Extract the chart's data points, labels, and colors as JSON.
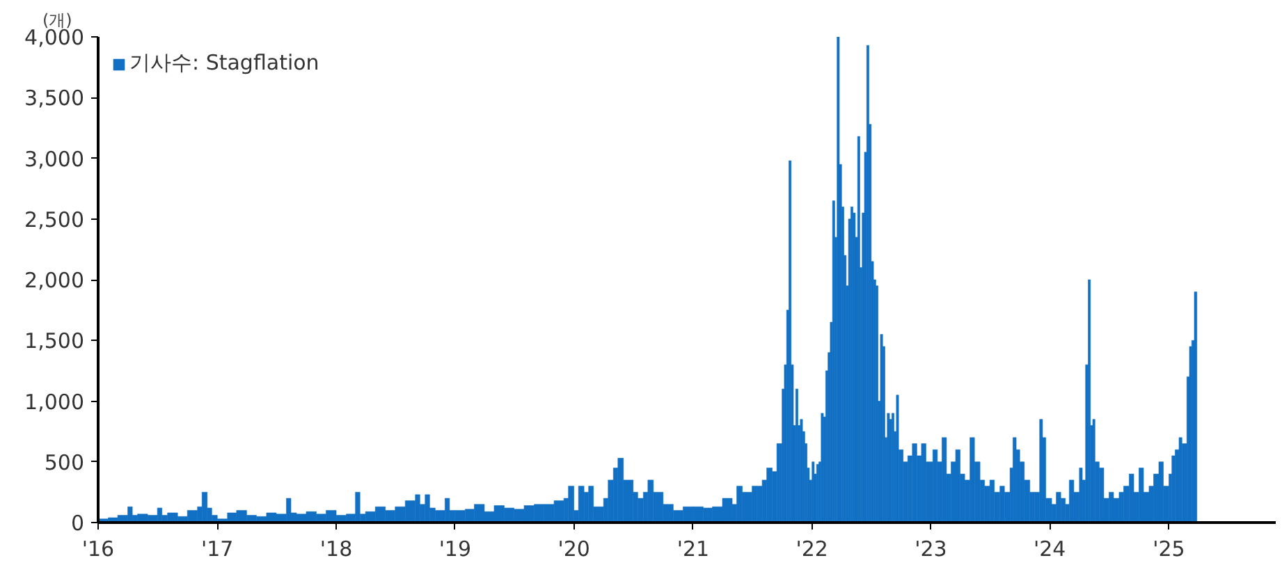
{
  "chart_data": {
    "type": "bar",
    "ylabel": "(개)",
    "series": [
      {
        "name": "기사수: Stagflation",
        "color": "#1170c4",
        "x": [
          "2016-01-01",
          "2016-02-01",
          "2016-03-01",
          "2016-04-01",
          "2016-04-15",
          "2016-05-01",
          "2016-06-01",
          "2016-07-01",
          "2016-07-15",
          "2016-08-01",
          "2016-09-01",
          "2016-10-01",
          "2016-11-01",
          "2016-11-15",
          "2016-12-01",
          "2016-12-15",
          "2017-01-01",
          "2017-02-01",
          "2017-03-01",
          "2017-04-01",
          "2017-05-01",
          "2017-06-01",
          "2017-07-01",
          "2017-08-01",
          "2017-08-15",
          "2017-09-01",
          "2017-10-01",
          "2017-11-01",
          "2017-12-01",
          "2018-01-01",
          "2018-02-01",
          "2018-03-01",
          "2018-03-15",
          "2018-04-01",
          "2018-05-01",
          "2018-06-01",
          "2018-07-01",
          "2018-08-01",
          "2018-09-01",
          "2018-09-15",
          "2018-10-01",
          "2018-10-15",
          "2018-11-01",
          "2018-12-01",
          "2018-12-15",
          "2019-01-01",
          "2019-02-01",
          "2019-03-01",
          "2019-04-01",
          "2019-05-01",
          "2019-06-01",
          "2019-07-01",
          "2019-08-01",
          "2019-09-01",
          "2019-10-01",
          "2019-11-01",
          "2019-12-01",
          "2019-12-15",
          "2020-01-01",
          "2020-01-15",
          "2020-02-01",
          "2020-02-15",
          "2020-03-01",
          "2020-04-01",
          "2020-04-15",
          "2020-05-01",
          "2020-05-15",
          "2020-06-01",
          "2020-07-01",
          "2020-07-15",
          "2020-08-01",
          "2020-08-15",
          "2020-09-01",
          "2020-10-01",
          "2020-11-01",
          "2020-12-01",
          "2021-01-01",
          "2021-02-01",
          "2021-03-01",
          "2021-04-01",
          "2021-05-01",
          "2021-05-15",
          "2021-06-01",
          "2021-07-01",
          "2021-07-15",
          "2021-08-01",
          "2021-08-15",
          "2021-09-01",
          "2021-09-15",
          "2021-09-22",
          "2021-10-01",
          "2021-10-08",
          "2021-10-15",
          "2021-10-22",
          "2021-10-29",
          "2021-11-05",
          "2021-11-12",
          "2021-11-19",
          "2021-11-26",
          "2021-12-03",
          "2021-12-10",
          "2021-12-17",
          "2021-12-24",
          "2022-01-01",
          "2022-01-08",
          "2022-01-15",
          "2022-01-22",
          "2022-01-29",
          "2022-02-05",
          "2022-02-12",
          "2022-02-19",
          "2022-02-26",
          "2022-03-05",
          "2022-03-12",
          "2022-03-19",
          "2022-03-26",
          "2022-04-02",
          "2022-04-09",
          "2022-04-16",
          "2022-04-23",
          "2022-04-30",
          "2022-05-07",
          "2022-05-14",
          "2022-05-21",
          "2022-05-28",
          "2022-06-04",
          "2022-06-11",
          "2022-06-18",
          "2022-06-25",
          "2022-07-02",
          "2022-07-09",
          "2022-07-16",
          "2022-07-23",
          "2022-07-30",
          "2022-08-06",
          "2022-08-13",
          "2022-08-20",
          "2022-08-27",
          "2022-09-03",
          "2022-09-10",
          "2022-09-17",
          "2022-09-24",
          "2022-10-08",
          "2022-10-22",
          "2022-11-05",
          "2022-11-19",
          "2022-12-03",
          "2022-12-17",
          "2023-01-07",
          "2023-01-21",
          "2023-02-04",
          "2023-02-18",
          "2023-03-04",
          "2023-03-18",
          "2023-04-01",
          "2023-04-15",
          "2023-05-01",
          "2023-05-15",
          "2023-06-01",
          "2023-06-15",
          "2023-07-01",
          "2023-07-15",
          "2023-08-01",
          "2023-08-15",
          "2023-09-01",
          "2023-09-10",
          "2023-09-20",
          "2023-10-01",
          "2023-10-15",
          "2023-11-01",
          "2023-11-15",
          "2023-12-01",
          "2023-12-10",
          "2023-12-20",
          "2024-01-07",
          "2024-01-21",
          "2024-02-04",
          "2024-02-18",
          "2024-03-01",
          "2024-03-15",
          "2024-04-01",
          "2024-04-10",
          "2024-04-20",
          "2024-04-28",
          "2024-05-05",
          "2024-05-12",
          "2024-05-19",
          "2024-06-01",
          "2024-06-15",
          "2024-07-01",
          "2024-07-15",
          "2024-08-01",
          "2024-08-15",
          "2024-09-01",
          "2024-09-15",
          "2024-10-01",
          "2024-10-15",
          "2024-11-01",
          "2024-11-15",
          "2024-12-01",
          "2024-12-15",
          "2025-01-01",
          "2025-01-10",
          "2025-01-20",
          "2025-02-01",
          "2025-02-10",
          "2025-02-25",
          "2025-03-05",
          "2025-03-12",
          "2025-03-20"
        ],
        "values": [
          30,
          40,
          60,
          130,
          60,
          70,
          60,
          120,
          60,
          80,
          50,
          100,
          130,
          250,
          120,
          60,
          30,
          80,
          100,
          60,
          50,
          80,
          70,
          200,
          80,
          70,
          90,
          70,
          100,
          60,
          70,
          250,
          70,
          90,
          130,
          100,
          130,
          180,
          230,
          150,
          230,
          120,
          100,
          200,
          100,
          100,
          110,
          150,
          90,
          140,
          120,
          110,
          140,
          150,
          150,
          180,
          200,
          300,
          100,
          300,
          250,
          300,
          130,
          200,
          350,
          450,
          530,
          350,
          250,
          200,
          250,
          350,
          250,
          150,
          100,
          130,
          130,
          120,
          130,
          200,
          150,
          300,
          250,
          300,
          300,
          350,
          450,
          420,
          650,
          650,
          1100,
          1300,
          1750,
          2980,
          1300,
          800,
          1100,
          800,
          850,
          750,
          650,
          450,
          350,
          500,
          400,
          480,
          500,
          900,
          870,
          1250,
          1400,
          1650,
          2650,
          2350,
          4000,
          2950,
          2600,
          2200,
          1950,
          2500,
          2600,
          2550,
          2350,
          3180,
          2100,
          2550,
          3050,
          3930,
          3280,
          2150,
          2000,
          1950,
          1000,
          1550,
          1450,
          700,
          900,
          850,
          900,
          750,
          1050,
          600,
          500,
          550,
          650,
          550,
          650,
          500,
          600,
          500,
          700,
          400,
          500,
          600,
          400,
          350,
          700,
          500,
          350,
          300,
          350,
          250,
          300,
          250,
          450,
          700,
          600,
          500,
          350,
          250,
          250,
          850,
          700,
          200,
          150,
          250,
          200,
          150,
          350,
          250,
          450,
          350,
          1300,
          2000,
          800,
          850,
          500,
          450,
          200,
          250,
          200,
          250,
          300,
          400,
          250,
          450,
          250,
          300,
          400,
          500,
          300,
          400,
          550,
          600,
          700,
          650,
          1200,
          1450,
          1500,
          1900
        ]
      }
    ],
    "xlim": [
      "2016-01-01",
      "2025-11-25"
    ],
    "xticks": [
      {
        "value": "2016-01-01",
        "label": "'16"
      },
      {
        "value": "2017-01-01",
        "label": "'17"
      },
      {
        "value": "2018-01-01",
        "label": "'18"
      },
      {
        "value": "2019-01-01",
        "label": "'19"
      },
      {
        "value": "2020-01-01",
        "label": "'20"
      },
      {
        "value": "2021-01-01",
        "label": "'21"
      },
      {
        "value": "2022-01-01",
        "label": "'22"
      },
      {
        "value": "2023-01-01",
        "label": "'23"
      },
      {
        "value": "2024-01-01",
        "label": "'24"
      },
      {
        "value": "2025-01-01",
        "label": "'25"
      }
    ],
    "ylim": [
      0,
      4000
    ],
    "yticks": [
      0,
      500,
      {
        "value": 1000,
        "label": "1,000"
      },
      {
        "value": 1500,
        "label": "1,500"
      },
      {
        "value": 2000,
        "label": "2,000"
      },
      {
        "value": 2500,
        "label": "2,500"
      },
      {
        "value": 3000,
        "label": "3,000"
      },
      {
        "value": 3500,
        "label": "3,500"
      },
      {
        "value": 4000,
        "label": "4,000"
      }
    ],
    "grid": false,
    "legend": "top left"
  }
}
